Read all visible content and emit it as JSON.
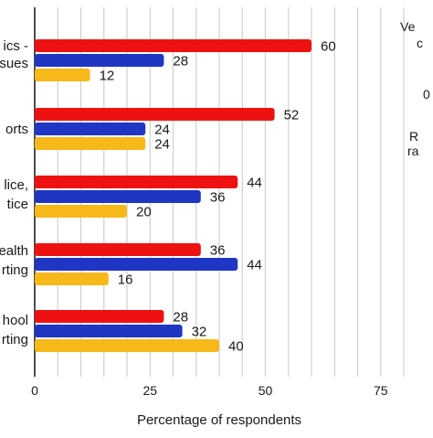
{
  "chart_data": {
    "type": "bar",
    "orientation": "horizontal",
    "xlabel": "Percentage of respondents",
    "xlim": [
      0,
      80
    ],
    "xticks": [
      0,
      25,
      50,
      75
    ],
    "grid": "vertical gridlines every 5",
    "categories": [
      [
        "ics -",
        "sues"
      ],
      [
        "orts"
      ],
      [
        "lice,",
        "tice"
      ],
      [
        "ealth",
        "rting"
      ],
      [
        "hool",
        "rting"
      ]
    ],
    "series": [
      {
        "color": "#ee1111",
        "values": [
          60,
          52,
          44,
          36,
          28
        ]
      },
      {
        "color": "#1f36c4",
        "values": [
          28,
          24,
          36,
          44,
          32
        ]
      },
      {
        "color": "#f7b81a",
        "values": [
          12,
          24,
          20,
          16,
          40
        ]
      }
    ],
    "legend": {
      "position": "right",
      "fragments": [
        "Ve",
        "c",
        "0",
        "R",
        "ra"
      ]
    }
  }
}
